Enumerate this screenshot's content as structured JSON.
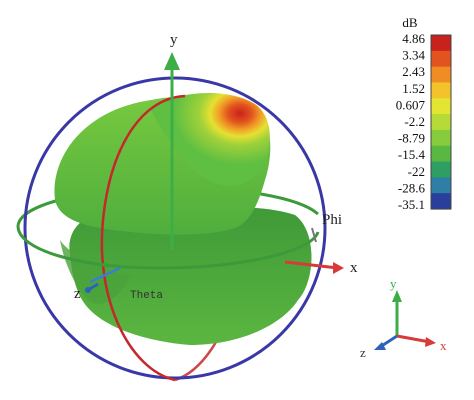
{
  "chart_data": {
    "type": "3d-radiation-pattern",
    "unit": "dB",
    "scale_ticks": [
      "4.86",
      "3.34",
      "2.43",
      "1.52",
      "0.607",
      "-2.2",
      "-8.79",
      "-15.4",
      "-22",
      "-28.6",
      "-35.1"
    ],
    "scale_colors": [
      "#c8221c",
      "#e2541f",
      "#ef8d24",
      "#f4c32b",
      "#e3e532",
      "#b6da38",
      "#87cc3d",
      "#58b842",
      "#2f9e62",
      "#2f7ea6",
      "#2a3f9b"
    ],
    "axes": {
      "x": "x",
      "y": "y",
      "z": "z",
      "phi": "Phi",
      "theta": "Theta"
    },
    "triad_axes": {
      "x": "x",
      "y": "y",
      "z": "z"
    },
    "colors": {
      "x_axis": "#d83a3a",
      "y_axis": "#3dae45",
      "z_axis": "#2c62b8",
      "great_circle_red": "#c4282b",
      "great_circle_blue": "#3a37a6",
      "equator_ring": "#3c9a3a"
    },
    "main_lobe_peak_dB": 4.86,
    "min_dB": -35.1
  }
}
